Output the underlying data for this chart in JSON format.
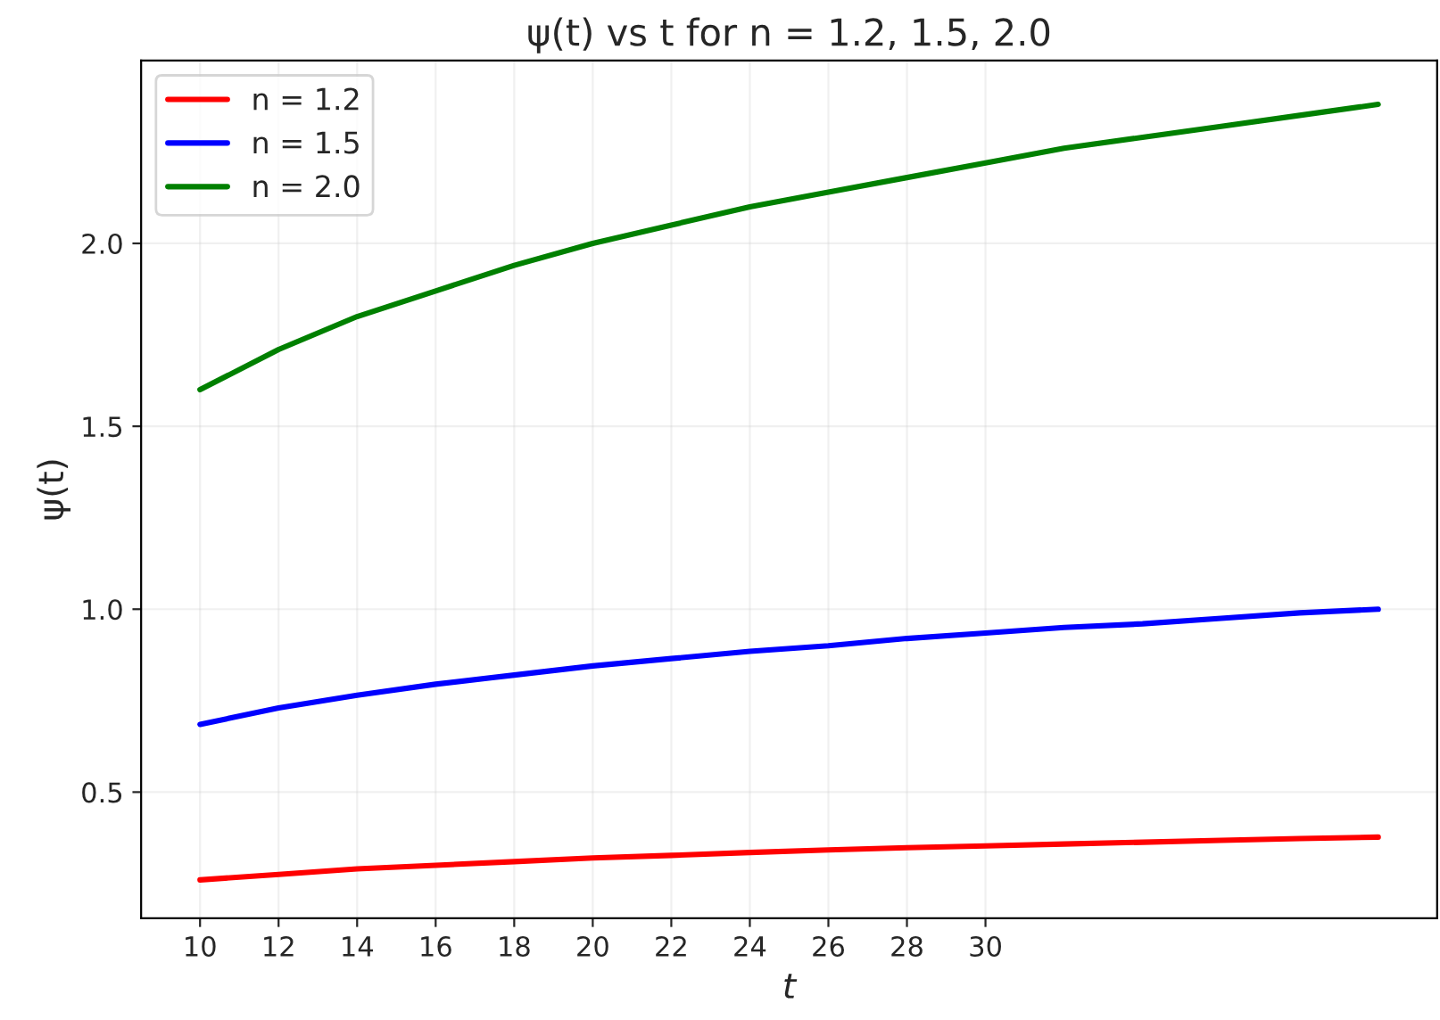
{
  "chart_data": {
    "type": "line",
    "title": "ψ(t) vs t for n = 1.2, 1.5, 2.0",
    "xlabel": "t",
    "ylabel": "ψ(t)",
    "x": [
      10,
      12,
      14,
      16,
      18,
      20,
      22,
      24,
      26,
      28,
      30,
      32,
      34,
      36,
      38,
      40
    ],
    "series": [
      {
        "name": "n = 1.2",
        "color": "#ff0000",
        "values": [
          0.26,
          0.275,
          0.29,
          0.3,
          0.31,
          0.32,
          0.327,
          0.335,
          0.342,
          0.348,
          0.353,
          0.358,
          0.363,
          0.368,
          0.373,
          0.377
        ]
      },
      {
        "name": "n = 1.5",
        "color": "#0000ff",
        "values": [
          0.685,
          0.73,
          0.765,
          0.795,
          0.82,
          0.845,
          0.865,
          0.885,
          0.9,
          0.92,
          0.935,
          0.95,
          0.96,
          0.975,
          0.99,
          1.0
        ]
      },
      {
        "name": "n = 2.0",
        "color": "#008000",
        "values": [
          1.6,
          1.71,
          1.8,
          1.87,
          1.94,
          2.0,
          2.05,
          2.1,
          2.14,
          2.18,
          2.22,
          2.26,
          2.29,
          2.32,
          2.35,
          2.38
        ]
      }
    ],
    "xlim": [
      8.5,
      41.5
    ],
    "xticks": [
      10,
      12,
      14,
      16,
      18,
      20,
      22,
      24,
      26,
      28,
      30
    ],
    "ylim": [
      0.155,
      2.5
    ],
    "yticks": [
      0.5,
      {
        "value": 1,
        "label": "1.0"
      },
      1.5,
      {
        "value": 2,
        "label": "2.0"
      }
    ],
    "grid": true,
    "legend": "top left",
    "marker": "none",
    "line_style": "solid"
  }
}
